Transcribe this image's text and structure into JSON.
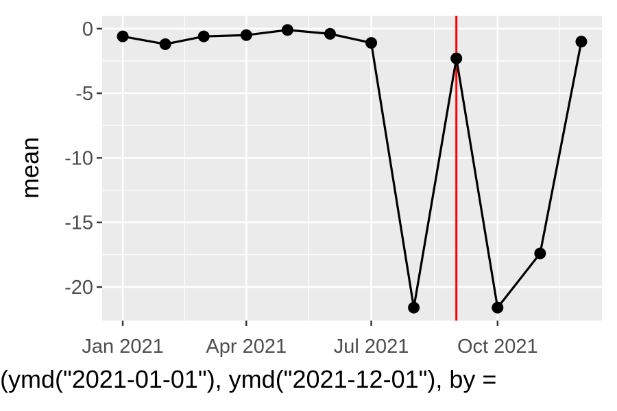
{
  "chart_data": {
    "type": "line",
    "xlabel": "(ymd(\"2021-01-01\"), ymd(\"2021-12-01\"), by =",
    "ylabel": "mean",
    "x_ticks": [
      {
        "date": "2021-01-01",
        "label": "Jan 2021"
      },
      {
        "date": "2021-04-01",
        "label": "Apr 2021"
      },
      {
        "date": "2021-07-01",
        "label": "Jul 2021"
      },
      {
        "date": "2021-10-01",
        "label": "Oct 2021"
      }
    ],
    "y_ticks": [
      0,
      -5,
      -10,
      -15,
      -20
    ],
    "y_tick_labels": [
      "0",
      "-5",
      "-10",
      "-15",
      "-20"
    ],
    "xlim": [
      "2020-12-17",
      "2021-12-16"
    ],
    "ylim": [
      -22.6,
      1.0
    ],
    "grid": true,
    "series": [
      {
        "x": [
          "2021-01-01",
          "2021-02-01",
          "2021-03-01",
          "2021-04-01",
          "2021-05-01",
          "2021-06-01",
          "2021-07-01",
          "2021-08-01",
          "2021-09-01",
          "2021-10-01",
          "2021-11-01",
          "2021-12-01"
        ],
        "values": [
          -0.6,
          -1.2,
          -0.6,
          -0.5,
          -0.1,
          -0.4,
          -1.1,
          -21.6,
          -2.3,
          -21.6,
          -17.4,
          -1.0
        ],
        "color": "#000000"
      }
    ],
    "reference_line": {
      "axis": "x",
      "value": "2021-09-01",
      "color": "#ff0000"
    },
    "colors": {
      "panel": "#ebebeb",
      "grid": "#ffffff",
      "line": "#000000",
      "vline": "#ff0000",
      "tick_text": "#4d4d4d"
    }
  }
}
